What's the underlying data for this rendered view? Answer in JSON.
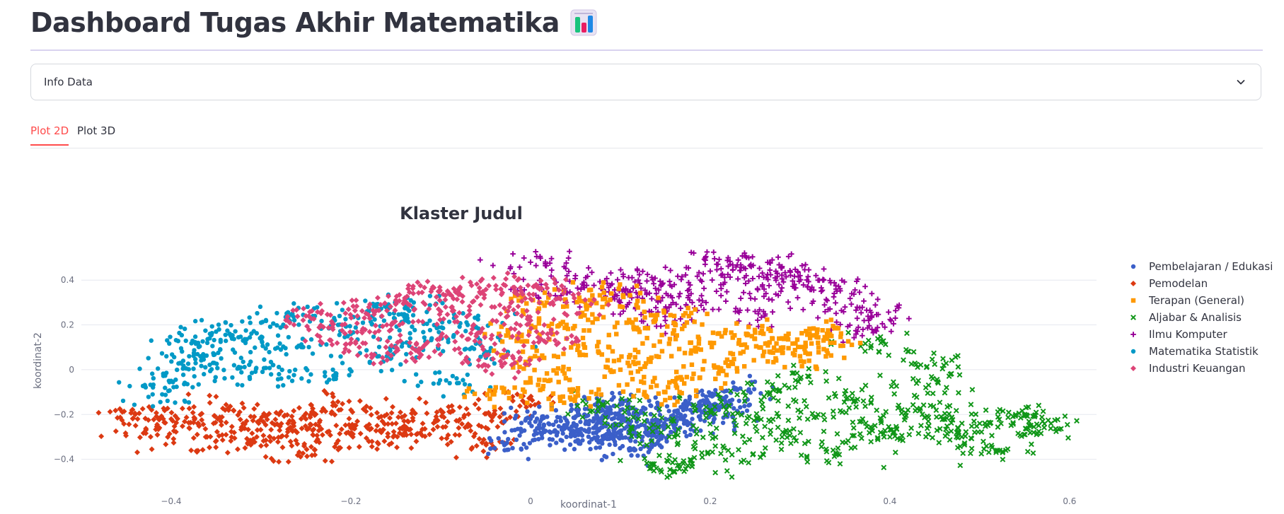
{
  "header": {
    "title": "Dashboard Tugas Akhir Matematika",
    "icon": "bar-chart-emoji-icon"
  },
  "expander": {
    "label": "Info Data",
    "icon": "chevron-down-icon"
  },
  "tabs": [
    {
      "label": "Plot 2D",
      "active": true
    },
    {
      "label": "Plot 3D",
      "active": false
    }
  ],
  "colors": {
    "accent": "#ff4b4b",
    "text": "#31333f",
    "grid": "#e6e8ef"
  },
  "chart_data": {
    "type": "scatter",
    "title": "Klaster Judul",
    "xlabel": "koordinat-1",
    "ylabel": "koordinat-2",
    "xlim": [
      -0.5,
      0.63
    ],
    "ylim": [
      -0.48,
      0.53
    ],
    "xticks": [
      -0.4,
      -0.2,
      0,
      0.2,
      0.4,
      0.6
    ],
    "xtick_labels": [
      "−0.4",
      "−0.2",
      "0",
      "0.2",
      "0.4",
      "0.6"
    ],
    "yticks": [
      -0.4,
      -0.2,
      0,
      0.2,
      0.4
    ],
    "ytick_labels": [
      "−0.4",
      "−0.2",
      "0",
      "0.2",
      "0.4"
    ],
    "grid": true,
    "legend_position": "right",
    "series": [
      {
        "name": "Pembelajaran / Edukasi",
        "color": "#3b5fc9",
        "symbol": "circle",
        "points": [
          [
            -0.02,
            -0.35
          ],
          [
            0.0,
            -0.22
          ],
          [
            0.02,
            -0.24
          ],
          [
            0.03,
            -0.28
          ],
          [
            0.04,
            -0.3
          ],
          [
            0.05,
            -0.32
          ],
          [
            0.06,
            -0.2
          ],
          [
            0.07,
            -0.26
          ],
          [
            0.08,
            -0.22
          ],
          [
            0.09,
            -0.3
          ],
          [
            0.1,
            -0.24
          ],
          [
            0.11,
            -0.28
          ],
          [
            0.12,
            -0.2
          ],
          [
            0.13,
            -0.26
          ],
          [
            0.14,
            -0.3
          ],
          [
            0.15,
            -0.22
          ],
          [
            0.16,
            -0.26
          ],
          [
            0.17,
            -0.18
          ],
          [
            0.18,
            -0.22
          ],
          [
            0.19,
            -0.16
          ],
          [
            0.2,
            -0.2
          ],
          [
            0.21,
            -0.12
          ],
          [
            0.22,
            -0.16
          ],
          [
            0.23,
            -0.09
          ],
          [
            0.11,
            -0.36
          ],
          [
            0.08,
            -0.18
          ],
          [
            0.06,
            -0.27
          ],
          [
            0.1,
            -0.15
          ]
        ]
      },
      {
        "name": "Pemodelan",
        "color": "#dc3912",
        "symbol": "diamond",
        "points": [
          [
            -0.44,
            -0.2
          ],
          [
            -0.43,
            -0.28
          ],
          [
            -0.4,
            -0.22
          ],
          [
            -0.38,
            -0.26
          ],
          [
            -0.36,
            -0.3
          ],
          [
            -0.34,
            -0.18
          ],
          [
            -0.32,
            -0.24
          ],
          [
            -0.3,
            -0.34
          ],
          [
            -0.28,
            -0.2
          ],
          [
            -0.26,
            -0.28
          ],
          [
            -0.24,
            -0.38
          ],
          [
            -0.22,
            -0.16
          ],
          [
            -0.2,
            -0.26
          ],
          [
            -0.18,
            -0.32
          ],
          [
            -0.16,
            -0.2
          ],
          [
            -0.14,
            -0.28
          ],
          [
            -0.12,
            -0.24
          ],
          [
            -0.1,
            -0.18
          ],
          [
            -0.08,
            -0.26
          ],
          [
            -0.06,
            -0.34
          ],
          [
            -0.04,
            -0.2
          ],
          [
            -0.02,
            -0.12
          ],
          [
            -0.25,
            -0.22
          ],
          [
            -0.29,
            -0.3
          ]
        ]
      },
      {
        "name": "Terapan (General)",
        "color": "#ff9900",
        "symbol": "square",
        "points": [
          [
            -0.03,
            -0.1
          ],
          [
            -0.01,
            0.15
          ],
          [
            0.0,
            0.05
          ],
          [
            0.01,
            0.3
          ],
          [
            0.02,
            -0.05
          ],
          [
            0.04,
            0.2
          ],
          [
            0.06,
            0.1
          ],
          [
            0.08,
            0.28
          ],
          [
            0.1,
            0.0
          ],
          [
            0.12,
            0.18
          ],
          [
            0.14,
            0.06
          ],
          [
            0.16,
            0.24
          ],
          [
            0.18,
            -0.04
          ],
          [
            0.2,
            0.12
          ],
          [
            0.22,
            0.02
          ],
          [
            0.24,
            0.16
          ],
          [
            0.26,
            0.08
          ],
          [
            0.28,
            0.14
          ],
          [
            0.3,
            0.06
          ],
          [
            0.32,
            0.12
          ],
          [
            0.33,
            0.16
          ],
          [
            0.15,
            -0.1
          ],
          [
            0.05,
            -0.12
          ],
          [
            0.09,
            0.34
          ]
        ]
      },
      {
        "name": "Aljabar & Analisis",
        "color": "#109618",
        "symbol": "x",
        "points": [
          [
            0.08,
            -0.16
          ],
          [
            0.12,
            -0.22
          ],
          [
            0.14,
            -0.44
          ],
          [
            0.16,
            -0.3
          ],
          [
            0.18,
            -0.42
          ],
          [
            0.2,
            -0.18
          ],
          [
            0.22,
            -0.36
          ],
          [
            0.24,
            -0.24
          ],
          [
            0.26,
            -0.12
          ],
          [
            0.28,
            -0.3
          ],
          [
            0.3,
            -0.04
          ],
          [
            0.32,
            -0.2
          ],
          [
            0.34,
            -0.38
          ],
          [
            0.36,
            -0.14
          ],
          [
            0.38,
            -0.26
          ],
          [
            0.4,
            -0.3
          ],
          [
            0.42,
            -0.18
          ],
          [
            0.44,
            -0.08
          ],
          [
            0.46,
            -0.22
          ],
          [
            0.48,
            -0.3
          ],
          [
            0.5,
            -0.24
          ],
          [
            0.52,
            -0.36
          ],
          [
            0.54,
            -0.2
          ],
          [
            0.56,
            -0.28
          ],
          [
            0.57,
            -0.23
          ],
          [
            0.39,
            0.12
          ],
          [
            0.46,
            0.02
          ]
        ]
      },
      {
        "name": "Ilmu Komputer",
        "color": "#990099",
        "symbol": "cross",
        "points": [
          [
            0.0,
            0.48
          ],
          [
            0.02,
            0.34
          ],
          [
            0.05,
            0.42
          ],
          [
            0.08,
            0.36
          ],
          [
            0.1,
            0.3
          ],
          [
            0.12,
            0.4
          ],
          [
            0.14,
            0.34
          ],
          [
            0.16,
            0.38
          ],
          [
            0.18,
            0.3
          ],
          [
            0.2,
            0.44
          ],
          [
            0.22,
            0.5
          ],
          [
            0.24,
            0.42
          ],
          [
            0.26,
            0.36
          ],
          [
            0.28,
            0.46
          ],
          [
            0.3,
            0.42
          ],
          [
            0.32,
            0.4
          ],
          [
            0.34,
            0.36
          ],
          [
            0.35,
            0.28
          ],
          [
            0.37,
            0.18
          ],
          [
            0.38,
            0.24
          ],
          [
            0.25,
            0.26
          ],
          [
            0.15,
            0.22
          ]
        ]
      },
      {
        "name": "Matematika Statistik",
        "color": "#0099c6",
        "symbol": "circle",
        "points": [
          [
            -0.41,
            -0.11
          ],
          [
            -0.4,
            -0.05
          ],
          [
            -0.39,
            0.03
          ],
          [
            -0.38,
            0.06
          ],
          [
            -0.37,
            0.12
          ],
          [
            -0.35,
            0.17
          ],
          [
            -0.33,
            0.02
          ],
          [
            -0.32,
            0.13
          ],
          [
            -0.3,
            0.21
          ],
          [
            -0.28,
            -0.02
          ],
          [
            -0.26,
            0.1
          ],
          [
            -0.24,
            0.24
          ],
          [
            -0.22,
            0.0
          ],
          [
            -0.2,
            0.16
          ],
          [
            -0.18,
            0.26
          ],
          [
            -0.16,
            0.06
          ],
          [
            -0.14,
            0.22
          ],
          [
            -0.13,
            0.3
          ],
          [
            -0.11,
            0.14
          ],
          [
            -0.09,
            -0.06
          ],
          [
            -0.07,
            0.2
          ],
          [
            -0.05,
            0.08
          ]
        ]
      },
      {
        "name": "Industri Keuangan",
        "color": "#dd4477",
        "symbol": "diamond",
        "points": [
          [
            -0.25,
            0.24
          ],
          [
            -0.22,
            0.18
          ],
          [
            -0.2,
            0.12
          ],
          [
            -0.18,
            0.28
          ],
          [
            -0.16,
            0.2
          ],
          [
            -0.14,
            0.32
          ],
          [
            -0.12,
            0.1
          ],
          [
            -0.1,
            0.26
          ],
          [
            -0.08,
            0.34
          ],
          [
            -0.06,
            0.16
          ],
          [
            -0.04,
            0.28
          ],
          [
            -0.03,
            0.38
          ],
          [
            -0.02,
            0.06
          ],
          [
            0.0,
            0.22
          ],
          [
            0.02,
            0.14
          ],
          [
            0.04,
            0.3
          ],
          [
            -0.05,
            0.02
          ],
          [
            -0.15,
            0.08
          ],
          [
            -0.11,
            0.36
          ],
          [
            0.01,
            0.36
          ]
        ]
      }
    ]
  }
}
